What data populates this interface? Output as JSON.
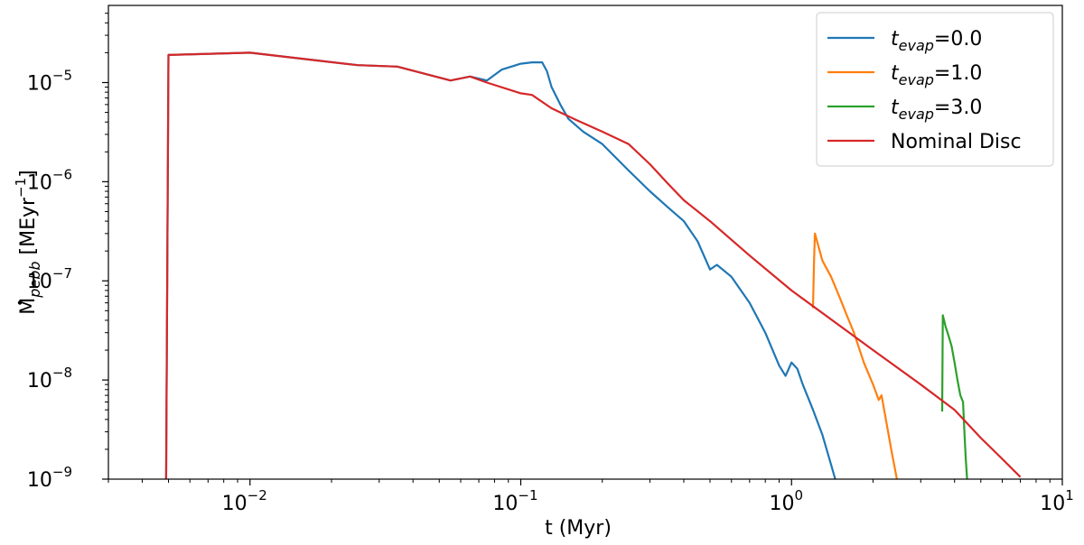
{
  "chart_data": {
    "type": "line",
    "xscale": "log",
    "yscale": "log",
    "xlim": [
      0.003,
      10
    ],
    "ylim": [
      1e-09,
      6e-05
    ],
    "xlabel": "t (Myr)",
    "ylabel": {
      "base": "M",
      "sub": "pebb",
      "units": "[MEyr",
      "sup": "−1",
      "close": "]"
    },
    "xticks": [
      {
        "value": 0.01,
        "base": "10",
        "exp": "−2"
      },
      {
        "value": 0.1,
        "base": "10",
        "exp": "−1"
      },
      {
        "value": 1,
        "base": "10",
        "exp": "0"
      },
      {
        "value": 10,
        "base": "10",
        "exp": "1"
      }
    ],
    "yticks": [
      {
        "value": 1e-09,
        "base": "10",
        "exp": "−9"
      },
      {
        "value": 1e-08,
        "base": "10",
        "exp": "−8"
      },
      {
        "value": 1e-07,
        "base": "10",
        "exp": "−7"
      },
      {
        "value": 1e-06,
        "base": "10",
        "exp": "−6"
      },
      {
        "value": 1e-05,
        "base": "10",
        "exp": "−5"
      }
    ],
    "legend_position": "top-right",
    "series": [
      {
        "name": "t_evap=0.0",
        "legend": {
          "main": "t",
          "sub": "evap",
          "rest": "=0.0"
        },
        "color": "#1f77b4",
        "x": [
          0.0049,
          0.005,
          0.01,
          0.025,
          0.035,
          0.055,
          0.065,
          0.075,
          0.085,
          0.1,
          0.11,
          0.12,
          0.125,
          0.13,
          0.14,
          0.15,
          0.17,
          0.2,
          0.25,
          0.3,
          0.35,
          0.4,
          0.45,
          0.5,
          0.53,
          0.6,
          0.7,
          0.8,
          0.9,
          0.95,
          1.0,
          1.05,
          1.1,
          1.2,
          1.3,
          1.4,
          1.45
        ],
        "y": [
          1e-09,
          1.9e-05,
          2e-05,
          1.5e-05,
          1.45e-05,
          1.05e-05,
          1.15e-05,
          1.05e-05,
          1.35e-05,
          1.55e-05,
          1.6e-05,
          1.6e-05,
          1.3e-05,
          9e-06,
          6e-06,
          4.3e-06,
          3.2e-06,
          2.4e-06,
          1.3e-06,
          8e-07,
          5.5e-07,
          4e-07,
          2.5e-07,
          1.3e-07,
          1.45e-07,
          1.1e-07,
          6e-08,
          3e-08,
          1.4e-08,
          1.1e-08,
          1.5e-08,
          1.3e-08,
          9e-09,
          5e-09,
          2.8e-09,
          1.4e-09,
          1e-09
        ]
      },
      {
        "name": "t_evap=1.0",
        "legend": {
          "main": "t",
          "sub": "evap",
          "rest": "=1.0"
        },
        "color": "#ff7f0e",
        "x": [
          1.2,
          1.21,
          1.22,
          1.3,
          1.4,
          1.5,
          1.6,
          1.7,
          1.85,
          2.0,
          2.1,
          2.15,
          2.25,
          2.35,
          2.45
        ],
        "y": [
          5.3e-08,
          1.5e-07,
          3e-07,
          1.6e-07,
          1.1e-07,
          7e-08,
          4.5e-08,
          3e-08,
          1.5e-08,
          9e-09,
          6.3e-09,
          7e-09,
          3.5e-09,
          1.8e-09,
          1e-09
        ]
      },
      {
        "name": "t_evap=3.0",
        "legend": {
          "main": "t",
          "sub": "evap",
          "rest": "=3.0"
        },
        "color": "#2ca02c",
        "x": [
          3.6,
          3.62,
          3.7,
          3.8,
          3.9,
          4.0,
          4.1,
          4.2,
          4.3,
          4.35,
          4.4,
          4.45
        ],
        "y": [
          4.8e-09,
          4.5e-08,
          3.5e-08,
          2.8e-08,
          2.2e-08,
          1.5e-08,
          1e-08,
          7e-09,
          6e-09,
          3e-09,
          1.6e-09,
          1e-09
        ]
      },
      {
        "name": "Nominal Disc",
        "legend": {
          "main": "Nominal Disc",
          "sub": "",
          "rest": ""
        },
        "color": "#d62728",
        "x": [
          0.0049,
          0.005,
          0.01,
          0.025,
          0.035,
          0.055,
          0.065,
          0.075,
          0.1,
          0.11,
          0.13,
          0.16,
          0.2,
          0.25,
          0.3,
          0.35,
          0.4,
          0.5,
          0.7,
          1.0,
          2.0,
          3.0,
          4.0,
          5.0,
          6.0,
          7.0
        ],
        "y": [
          1e-09,
          1.9e-05,
          2e-05,
          1.5e-05,
          1.45e-05,
          1.05e-05,
          1.15e-05,
          1e-05,
          7.8e-06,
          7.5e-06,
          5.5e-06,
          4.2e-06,
          3.2e-06,
          2.4e-06,
          1.5e-06,
          9.5e-07,
          6.5e-07,
          4e-07,
          1.8e-07,
          8e-08,
          2e-08,
          9e-09,
          5e-09,
          2.6e-09,
          1.6e-09,
          1.05e-09
        ]
      }
    ]
  }
}
